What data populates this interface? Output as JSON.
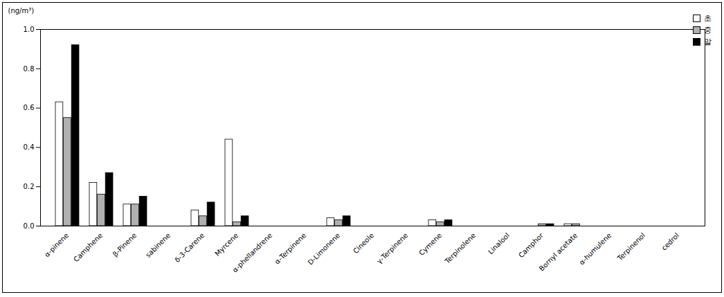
{
  "chart_data": {
    "type": "bar",
    "y_label": "(ng/m³)",
    "categories": [
      "α-pinene",
      "Camphene",
      "β-Pinene",
      "sabinene",
      "δ-3-Carene",
      "Myrcene",
      "α-phellandrene",
      "α-Terpinene",
      "D-Limonene",
      "Cineole",
      "γ-Terpinene",
      "Cymene",
      "Terpinolene",
      "Linalool",
      "Camphor",
      "Bornyl acetate",
      "α-humulene",
      "Terpinenol",
      "cedrol"
    ],
    "series": [
      {
        "name": "초",
        "color": "#ffffff",
        "values": [
          0.63,
          0.22,
          0.11,
          0,
          0.08,
          0.44,
          0,
          0,
          0.04,
          0,
          0,
          0.03,
          0,
          0,
          0,
          0.01,
          0,
          0,
          0
        ]
      },
      {
        "name": "중",
        "color": "#b0b0b0",
        "values": [
          0.55,
          0.16,
          0.11,
          0,
          0.05,
          0.02,
          0,
          0,
          0.03,
          0,
          0,
          0.02,
          0,
          0,
          0.01,
          0.01,
          0,
          0,
          0
        ]
      },
      {
        "name": "말",
        "color": "#000000",
        "values": [
          0.92,
          0.27,
          0.15,
          0,
          0.12,
          0.05,
          0,
          0,
          0.05,
          0,
          0,
          0.03,
          0,
          0,
          0.01,
          0,
          0,
          0,
          0
        ]
      }
    ],
    "ylim": [
      0,
      1
    ],
    "yticks": [
      {
        "value": 0,
        "label": "0.0"
      },
      0.2,
      0.4,
      0.6,
      0.8,
      {
        "value": 1,
        "label": "1.0"
      }
    ],
    "grid": false,
    "legend": "top-right"
  }
}
